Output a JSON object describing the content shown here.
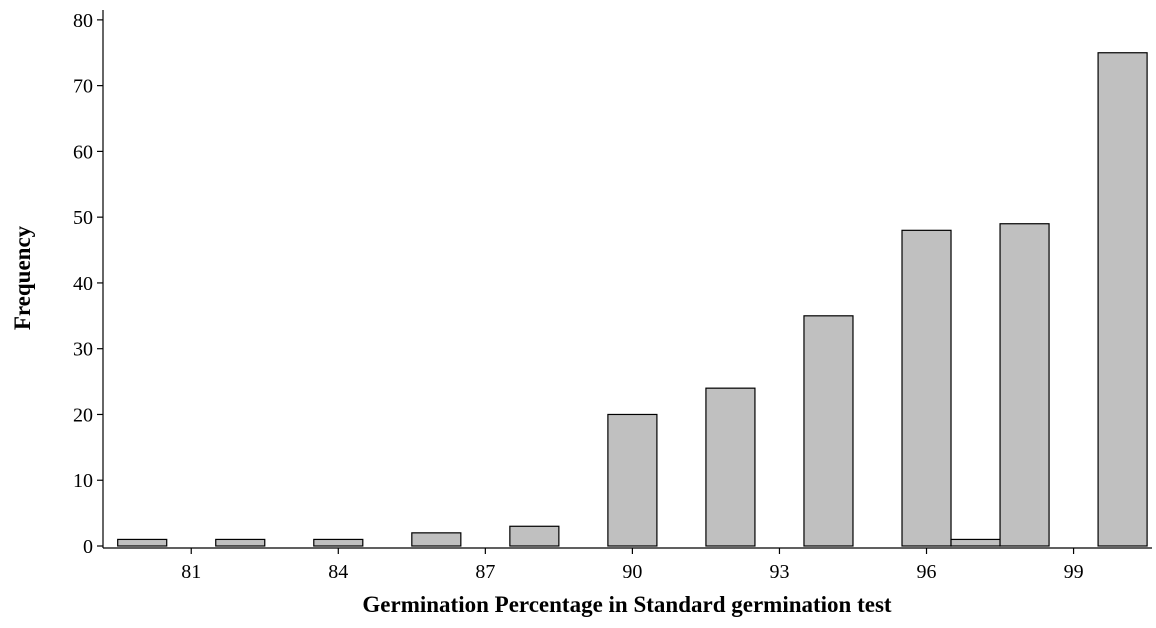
{
  "chart_data": {
    "type": "histogram",
    "x_label": "Germination Percentage in Standard germination test",
    "y_label": "Frequency",
    "bins": [
      79.5,
      80.5,
      81.5,
      82.5,
      83.5,
      84.5,
      85.5,
      86.5,
      87.5,
      88.5,
      89.5,
      90.5,
      91.5,
      92.5,
      93.5,
      94.5,
      95.5,
      96.5,
      97.5,
      98.5,
      99.5,
      100.5
    ],
    "values": [
      1,
      0,
      1,
      0,
      1,
      0,
      2,
      0,
      3,
      0,
      20,
      0,
      24,
      0,
      35,
      0,
      48,
      1,
      49,
      0,
      75
    ],
    "color": "#c0c0c0",
    "xlim": [
      79.2,
      100.6
    ],
    "xticks": [
      81,
      84,
      87,
      90,
      93,
      96,
      99
    ],
    "ylim": [
      0,
      81.5
    ],
    "yticks": [
      0,
      10,
      20,
      30,
      40,
      50,
      60,
      70,
      80
    ]
  }
}
